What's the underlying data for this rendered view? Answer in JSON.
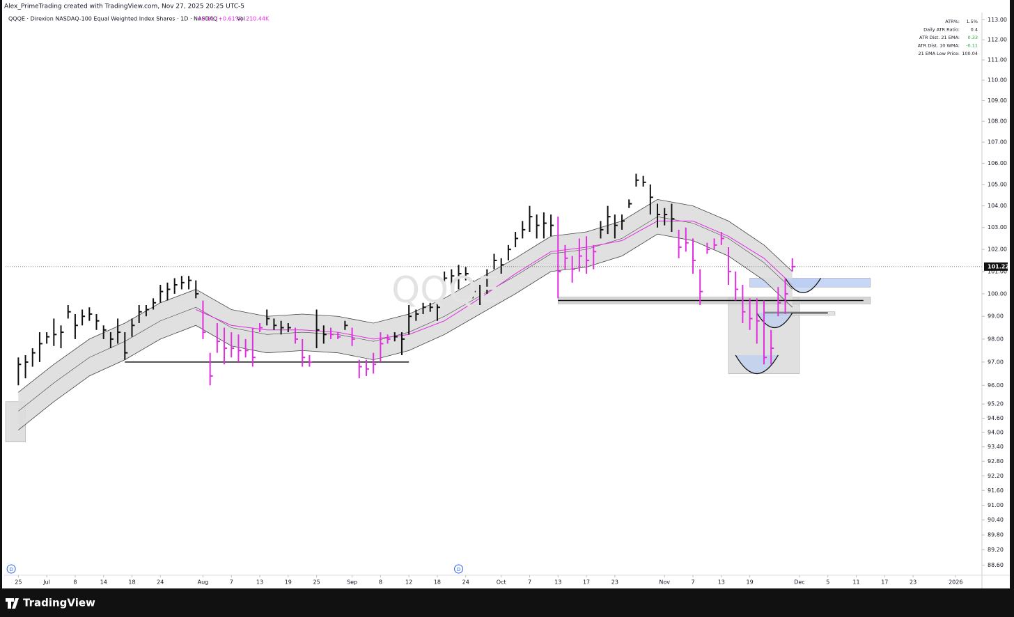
{
  "header": {
    "credit": "Alex_PrimeTrading created with TradingView.com, Nov 27, 2025 20:25 UTC-5",
    "symbol": "QQQE · Direxion NASDAQ-100 Equal Weighted Index Shares · 1D · NASDAQ",
    "change": "+0.61 (+0.61%)",
    "volume_label": "Vol",
    "volume": "210.44K",
    "watermark": "QQQE"
  },
  "footer": {
    "brand": "TradingView"
  },
  "indicator_table": {
    "rows": [
      {
        "label": "ATR%:",
        "value": "1.5%",
        "color": "#222222"
      },
      {
        "label": "Daily ATR Ratio:",
        "value": "0.4",
        "color": "#222222"
      },
      {
        "label": "ATR Dist. 21 EMA:",
        "value": "0.33",
        "color": "#22a33a"
      },
      {
        "label": "ATR Dist. 10 WMA:",
        "value": "-0.11",
        "color": "#22a33a"
      },
      {
        "label": "21 EMA Low Price:",
        "value": "100.04",
        "color": "#222222"
      }
    ]
  },
  "chart_data": {
    "type": "hlc",
    "log_scale": true,
    "ylim": [
      88.2,
      113.37
    ],
    "xlim": [
      -1.8,
      135.7
    ],
    "yticks": [
      {
        "value": 113,
        "label": "113.00"
      },
      {
        "value": 112,
        "label": "112.00"
      },
      {
        "value": 111,
        "label": "111.00"
      },
      {
        "value": 110,
        "label": "110.00"
      },
      {
        "value": 109,
        "label": "109.00"
      },
      {
        "value": 108,
        "label": "108.00"
      },
      {
        "value": 107,
        "label": "107.00"
      },
      {
        "value": 106,
        "label": "106.00"
      },
      {
        "value": 105,
        "label": "105.00"
      },
      {
        "value": 104,
        "label": "104.00"
      },
      {
        "value": 103,
        "label": "103.00"
      },
      {
        "value": 102,
        "label": "102.00"
      },
      {
        "value": 101,
        "label": "101.00"
      },
      {
        "value": 100,
        "label": "100.00"
      },
      {
        "value": 99,
        "label": "99.00"
      },
      {
        "value": 98,
        "label": "98.00"
      },
      {
        "value": 97,
        "label": "97.00"
      },
      {
        "value": 96,
        "label": "96.00"
      },
      {
        "value": 95.2,
        "label": "95.20"
      },
      {
        "value": 94.6,
        "label": "94.60"
      },
      {
        "value": 94,
        "label": "94.00"
      },
      {
        "value": 93.4,
        "label": "93.40"
      },
      {
        "value": 92.8,
        "label": "92.80"
      },
      {
        "value": 92.2,
        "label": "92.20"
      },
      {
        "value": 91.6,
        "label": "91.60"
      },
      {
        "value": 91,
        "label": "91.00"
      },
      {
        "value": 90.4,
        "label": "90.40"
      },
      {
        "value": 89.8,
        "label": "89.80"
      },
      {
        "value": 89.2,
        "label": "89.20"
      },
      {
        "value": 88.6,
        "label": "88.60"
      }
    ],
    "xticks": [
      {
        "value": 0,
        "label": "25"
      },
      {
        "value": 4,
        "label": "Jul"
      },
      {
        "value": 8,
        "label": "8"
      },
      {
        "value": 12,
        "label": "14"
      },
      {
        "value": 16,
        "label": "18"
      },
      {
        "value": 20,
        "label": "24"
      },
      {
        "value": 26,
        "label": "Aug"
      },
      {
        "value": 30,
        "label": "7"
      },
      {
        "value": 34,
        "label": "13"
      },
      {
        "value": 38,
        "label": "19"
      },
      {
        "value": 42,
        "label": "25"
      },
      {
        "value": 47,
        "label": "Sep"
      },
      {
        "value": 51,
        "label": "8"
      },
      {
        "value": 55,
        "label": "12"
      },
      {
        "value": 59,
        "label": "18"
      },
      {
        "value": 63,
        "label": "24"
      },
      {
        "value": 68,
        "label": "Oct"
      },
      {
        "value": 72,
        "label": "7"
      },
      {
        "value": 76,
        "label": "13"
      },
      {
        "value": 80,
        "label": "17"
      },
      {
        "value": 84,
        "label": "23"
      },
      {
        "value": 91,
        "label": "Nov"
      },
      {
        "value": 95,
        "label": "7"
      },
      {
        "value": 99,
        "label": "13"
      },
      {
        "value": 103,
        "label": "19"
      },
      {
        "value": 110,
        "label": "Dec"
      },
      {
        "value": 114,
        "label": "5"
      },
      {
        "value": 118,
        "label": "11"
      },
      {
        "value": 122,
        "label": "17"
      },
      {
        "value": 126,
        "label": "23"
      },
      {
        "value": 132,
        "label": "2026"
      }
    ],
    "bars": {
      "high": [
        97.2,
        97.3,
        97.6,
        98.3,
        98.3,
        98.9,
        98.6,
        99.5,
        99.1,
        99.3,
        99.4,
        99.1,
        98.6,
        98.3,
        98.9,
        98.3,
        98.9,
        99.5,
        99.5,
        99.8,
        100.4,
        100.5,
        100.7,
        100.8,
        100.8,
        100.6,
        99.7,
        97.4,
        98.7,
        98.5,
        98.3,
        98.2,
        98.0,
        98.5,
        98.7,
        99.3,
        98.9,
        98.8,
        98.7,
        98.5,
        98.0,
        97.3,
        99.3,
        98.6,
        98.5,
        98.3,
        98.8,
        98.5,
        97.1,
        97.1,
        97.4,
        98.3,
        98.2,
        98.3,
        98.3,
        99.5,
        99.3,
        99.6,
        99.6,
        99.7,
        101.0,
        101.1,
        101.3,
        101.2,
        100.6,
        100.4,
        101.1,
        101.8,
        101.6,
        102.2,
        102.8,
        103.3,
        104.0,
        103.6,
        103.7,
        103.6,
        103.5,
        102.2,
        101.7,
        102.5,
        102.6,
        102.2,
        103.3,
        104.0,
        103.6,
        103.6,
        104.3,
        105.5,
        105.4,
        105.0,
        104.1,
        103.9,
        104.1,
        102.9,
        103.0,
        102.5,
        101.1,
        102.3,
        102.5,
        102.8,
        102.1,
        101.0,
        100.4,
        99.8,
        99.8,
        99.7,
        98.4,
        100.3,
        100.7,
        101.6
      ],
      "low": [
        96.0,
        96.3,
        96.8,
        97.0,
        97.8,
        97.7,
        97.6,
        98.9,
        98.0,
        98.6,
        98.8,
        98.4,
        98.0,
        97.6,
        97.8,
        97.1,
        98.1,
        98.7,
        99.0,
        99.3,
        99.6,
        99.7,
        100.0,
        100.2,
        100.2,
        99.8,
        98.0,
        96.0,
        97.4,
        96.9,
        97.2,
        97.0,
        97.2,
        96.8,
        98.3,
        98.6,
        98.4,
        98.2,
        98.3,
        97.8,
        96.8,
        96.8,
        97.6,
        97.8,
        98.0,
        98.0,
        98.4,
        97.7,
        96.3,
        96.4,
        96.5,
        97.0,
        97.8,
        97.9,
        97.3,
        98.2,
        98.8,
        99.1,
        99.2,
        98.8,
        100.2,
        100.2,
        100.2,
        100.6,
        99.8,
        99.5,
        100.0,
        101.1,
        100.9,
        101.5,
        102.1,
        102.5,
        102.8,
        102.5,
        102.5,
        102.6,
        99.8,
        101.1,
        100.5,
        101.0,
        100.9,
        101.1,
        102.5,
        102.7,
        102.5,
        102.9,
        103.9,
        104.9,
        104.9,
        103.6,
        103.0,
        103.1,
        102.8,
        101.6,
        101.9,
        100.9,
        99.5,
        101.8,
        102.0,
        102.2,
        100.4,
        99.7,
        98.7,
        98.4,
        97.8,
        96.9,
        96.9,
        99.0,
        99.1,
        101.0
      ],
      "close": [
        96.9,
        97.0,
        97.4,
        97.8,
        98.1,
        98.2,
        98.3,
        99.2,
        98.6,
        99.0,
        99.1,
        98.8,
        98.4,
        98.0,
        98.3,
        97.4,
        98.6,
        99.2,
        99.3,
        99.6,
        100.1,
        100.2,
        100.4,
        100.5,
        100.6,
        100.0,
        98.3,
        96.4,
        97.9,
        97.6,
        97.6,
        97.5,
        97.5,
        97.2,
        98.5,
        98.9,
        98.6,
        98.5,
        98.5,
        98.0,
        97.2,
        97.0,
        98.4,
        98.2,
        98.2,
        98.1,
        98.6,
        98.0,
        96.8,
        96.7,
        96.9,
        97.8,
        98.0,
        98.1,
        98.0,
        99.0,
        99.1,
        99.4,
        99.4,
        99.4,
        100.7,
        100.8,
        100.9,
        100.9,
        100.1,
        100.0,
        100.7,
        101.5,
        101.3,
        102.0,
        102.5,
        102.9,
        103.5,
        103.1,
        103.2,
        103.1,
        101.0,
        101.6,
        101.1,
        101.7,
        101.5,
        101.9,
        102.9,
        103.5,
        103.1,
        103.3,
        104.1,
        105.2,
        105.1,
        104.4,
        103.6,
        103.6,
        103.4,
        102.1,
        102.3,
        101.5,
        100.1,
        102.0,
        102.2,
        102.5,
        101.0,
        100.2,
        99.2,
        98.9,
        98.8,
        97.2,
        97.6,
        99.6,
        100.0,
        101.22
      ],
      "colors": [
        "#111111",
        "#111111",
        "#111111",
        "#111111",
        "#111111",
        "#111111",
        "#111111",
        "#111111",
        "#111111",
        "#111111",
        "#111111",
        "#111111",
        "#111111",
        "#111111",
        "#111111",
        "#111111",
        "#111111",
        "#111111",
        "#111111",
        "#111111",
        "#111111",
        "#111111",
        "#111111",
        "#111111",
        "#111111",
        "#111111",
        "#e02ee0",
        "#e02ee0",
        "#e02ee0",
        "#e02ee0",
        "#e02ee0",
        "#e02ee0",
        "#e02ee0",
        "#e02ee0",
        "#e02ee0",
        "#111111",
        "#111111",
        "#111111",
        "#111111",
        "#e02ee0",
        "#e02ee0",
        "#e02ee0",
        "#111111",
        "#111111",
        "#e02ee0",
        "#e02ee0",
        "#111111",
        "#e02ee0",
        "#e02ee0",
        "#e02ee0",
        "#e02ee0",
        "#e02ee0",
        "#e02ee0",
        "#111111",
        "#111111",
        "#111111",
        "#111111",
        "#111111",
        "#111111",
        "#111111",
        "#111111",
        "#111111",
        "#111111",
        "#111111",
        "#111111",
        "#111111",
        "#111111",
        "#111111",
        "#111111",
        "#111111",
        "#111111",
        "#111111",
        "#111111",
        "#111111",
        "#111111",
        "#111111",
        "#e02ee0",
        "#e02ee0",
        "#e02ee0",
        "#e02ee0",
        "#e02ee0",
        "#e02ee0",
        "#111111",
        "#111111",
        "#111111",
        "#111111",
        "#111111",
        "#111111",
        "#111111",
        "#111111",
        "#111111",
        "#111111",
        "#111111",
        "#e02ee0",
        "#e02ee0",
        "#e02ee0",
        "#e02ee0",
        "#e02ee0",
        "#e02ee0",
        "#e02ee0",
        "#e02ee0",
        "#e02ee0",
        "#e02ee0",
        "#e02ee0",
        "#e02ee0",
        "#e02ee0",
        "#e02ee0",
        "#e02ee0",
        "#e02ee0",
        "#e02ee0"
      ]
    },
    "band": {
      "x": [
        0,
        5,
        10,
        15,
        20,
        25,
        30,
        35,
        40,
        45,
        50,
        55,
        60,
        65,
        70,
        75,
        80,
        85,
        90,
        95,
        100,
        105,
        109
      ],
      "upper": [
        95.7,
        96.9,
        98.0,
        98.7,
        99.6,
        100.2,
        99.3,
        99.0,
        99.1,
        99.0,
        98.7,
        99.1,
        99.8,
        100.7,
        101.6,
        102.6,
        102.8,
        103.3,
        104.3,
        104.0,
        103.3,
        102.2,
        101.0
      ],
      "center": [
        94.9,
        96.1,
        97.2,
        97.9,
        98.8,
        99.4,
        98.5,
        98.2,
        98.3,
        98.2,
        97.9,
        98.3,
        99.0,
        99.9,
        100.8,
        101.8,
        102.0,
        102.5,
        103.5,
        103.2,
        102.5,
        101.4,
        100.2
      ],
      "lower": [
        94.1,
        95.3,
        96.4,
        97.1,
        98.0,
        98.6,
        97.7,
        97.4,
        97.5,
        97.4,
        97.1,
        97.5,
        98.2,
        99.1,
        100.0,
        101.0,
        101.2,
        101.7,
        102.7,
        102.4,
        101.7,
        100.6,
        99.4
      ],
      "color": "#dddddd"
    },
    "ema": {
      "x": [
        25,
        30,
        35,
        40,
        45,
        50,
        55,
        60,
        65,
        70,
        75,
        80,
        85,
        90,
        95,
        100,
        105,
        109
      ],
      "values": [
        99.3,
        98.6,
        98.4,
        98.4,
        98.3,
        98.0,
        98.2,
        98.8,
        99.8,
        100.9,
        101.9,
        102.1,
        102.4,
        103.3,
        103.3,
        102.6,
        101.6,
        100.4
      ],
      "color": "#e02ee0"
    },
    "lines": [
      {
        "x": [
          15,
          55
        ],
        "price": 97.0
      },
      {
        "x": [
          76,
          119
        ],
        "price": 99.7
      },
      {
        "x": [
          105,
          114
        ],
        "price": 99.15
      }
    ],
    "boxes": [
      {
        "x": [
          -1.8,
          1
        ],
        "prices": [
          95.3,
          93.6
        ],
        "color": "#d8d8d8"
      },
      {
        "x": [
          100,
          110
        ],
        "prices": [
          99.85,
          96.5
        ],
        "color": "#d8d8d8"
      },
      {
        "x": [
          76,
          120
        ],
        "prices": [
          99.85,
          99.55
        ],
        "color": "#cccccc"
      },
      {
        "x": [
          105,
          115
        ],
        "prices": [
          99.2,
          99.05
        ],
        "color": "#dddddd"
      },
      {
        "x": [
          103,
          120
        ],
        "prices": [
          100.7,
          100.3
        ],
        "color": "#b9cdf2"
      }
    ],
    "arcs": [
      {
        "x": [
          108,
          113
        ],
        "prices": [
          100.7,
          100.05
        ]
      },
      {
        "x": [
          104,
          109
        ],
        "prices": [
          99.15,
          98.5
        ]
      },
      {
        "x": [
          101,
          107
        ],
        "prices": [
          97.3,
          96.5
        ]
      }
    ],
    "last_price": {
      "value": 101.22,
      "label": "101.22"
    },
    "markers": [
      {
        "x": -1,
        "label": "D"
      },
      {
        "x": 62,
        "label": "D"
      }
    ]
  }
}
